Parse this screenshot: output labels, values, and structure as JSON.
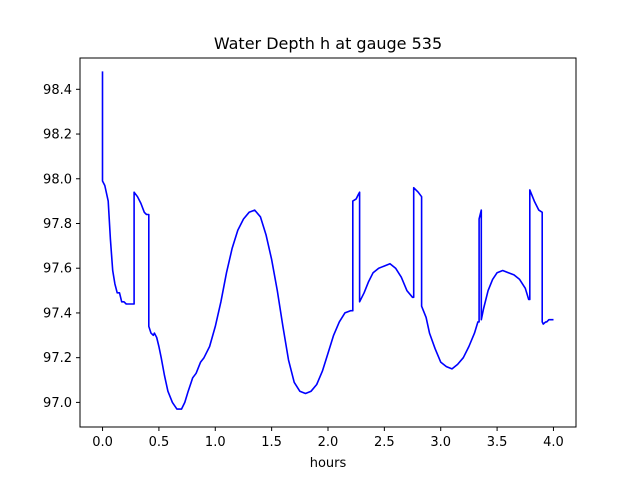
{
  "chart_data": {
    "type": "line",
    "title": "Water Depth h at gauge 535",
    "xlabel": "hours",
    "ylabel": "",
    "xlim": [
      -0.2,
      4.2
    ],
    "ylim": [
      96.89,
      98.54
    ],
    "xticks": [
      0.0,
      0.5,
      1.0,
      1.5,
      2.0,
      2.5,
      3.0,
      3.5,
      4.0
    ],
    "xtick_labels": [
      "0.0",
      "0.5",
      "1.0",
      "1.5",
      "2.0",
      "2.5",
      "3.0",
      "3.5",
      "4.0"
    ],
    "yticks": [
      97.0,
      97.2,
      97.4,
      97.6,
      97.8,
      98.0,
      98.2,
      98.4
    ],
    "ytick_labels": [
      "97.0",
      "97.2",
      "97.4",
      "97.6",
      "97.8",
      "98.0",
      "98.2",
      "98.4"
    ],
    "grid": false,
    "legend": "none",
    "series": [
      {
        "color": "#0000ff",
        "x": [
          0.0,
          0.0,
          0.02,
          0.05,
          0.07,
          0.09,
          0.11,
          0.13,
          0.15,
          0.17,
          0.19,
          0.21,
          0.23,
          0.25,
          0.27,
          0.28,
          0.28,
          0.31,
          0.34,
          0.37,
          0.39,
          0.41,
          0.41,
          0.43,
          0.45,
          0.46,
          0.48,
          0.5,
          0.52,
          0.55,
          0.58,
          0.62,
          0.66,
          0.7,
          0.73,
          0.76,
          0.8,
          0.83,
          0.87,
          0.9,
          0.95,
          1.0,
          1.05,
          1.1,
          1.15,
          1.2,
          1.25,
          1.3,
          1.35,
          1.4,
          1.45,
          1.5,
          1.55,
          1.6,
          1.65,
          1.7,
          1.75,
          1.8,
          1.85,
          1.9,
          1.95,
          2.0,
          2.05,
          2.1,
          2.15,
          2.2,
          2.22,
          2.22,
          2.25,
          2.27,
          2.28,
          2.28,
          2.32,
          2.36,
          2.4,
          2.45,
          2.5,
          2.55,
          2.6,
          2.65,
          2.7,
          2.75,
          2.76,
          2.76,
          2.8,
          2.83,
          2.83,
          2.87,
          2.9,
          2.95,
          3.0,
          3.05,
          3.1,
          3.15,
          3.2,
          3.25,
          3.3,
          3.33,
          3.34,
          3.34,
          3.36,
          3.36,
          3.38,
          3.42,
          3.46,
          3.5,
          3.55,
          3.6,
          3.65,
          3.7,
          3.75,
          3.78,
          3.79,
          3.79,
          3.83,
          3.87,
          3.9,
          3.9,
          3.91,
          3.93,
          3.94,
          3.96,
          3.98,
          4.0
        ],
        "y": [
          98.48,
          97.99,
          97.97,
          97.9,
          97.73,
          97.59,
          97.53,
          97.49,
          97.49,
          97.45,
          97.45,
          97.44,
          97.44,
          97.44,
          97.44,
          97.44,
          97.94,
          97.92,
          97.89,
          97.85,
          97.84,
          97.84,
          97.34,
          97.31,
          97.3,
          97.31,
          97.29,
          97.25,
          97.2,
          97.12,
          97.05,
          97.0,
          96.97,
          96.97,
          97.0,
          97.05,
          97.11,
          97.13,
          97.18,
          97.2,
          97.25,
          97.34,
          97.45,
          97.58,
          97.69,
          97.77,
          97.82,
          97.85,
          97.86,
          97.83,
          97.75,
          97.64,
          97.5,
          97.34,
          97.19,
          97.09,
          97.05,
          97.04,
          97.05,
          97.08,
          97.14,
          97.22,
          97.3,
          97.36,
          97.4,
          97.41,
          97.41,
          97.9,
          97.91,
          97.93,
          97.94,
          97.45,
          97.49,
          97.54,
          97.58,
          97.6,
          97.61,
          97.62,
          97.6,
          97.56,
          97.5,
          97.47,
          97.47,
          97.96,
          97.94,
          97.92,
          97.43,
          97.38,
          97.31,
          97.24,
          97.18,
          97.16,
          97.15,
          97.17,
          97.2,
          97.25,
          97.31,
          97.36,
          97.36,
          97.82,
          97.86,
          97.37,
          97.42,
          97.5,
          97.55,
          97.58,
          97.59,
          97.58,
          97.57,
          97.55,
          97.51,
          97.46,
          97.46,
          97.95,
          97.9,
          97.86,
          97.85,
          97.36,
          97.35,
          97.36,
          97.36,
          97.37,
          97.37,
          97.37
        ]
      }
    ]
  }
}
